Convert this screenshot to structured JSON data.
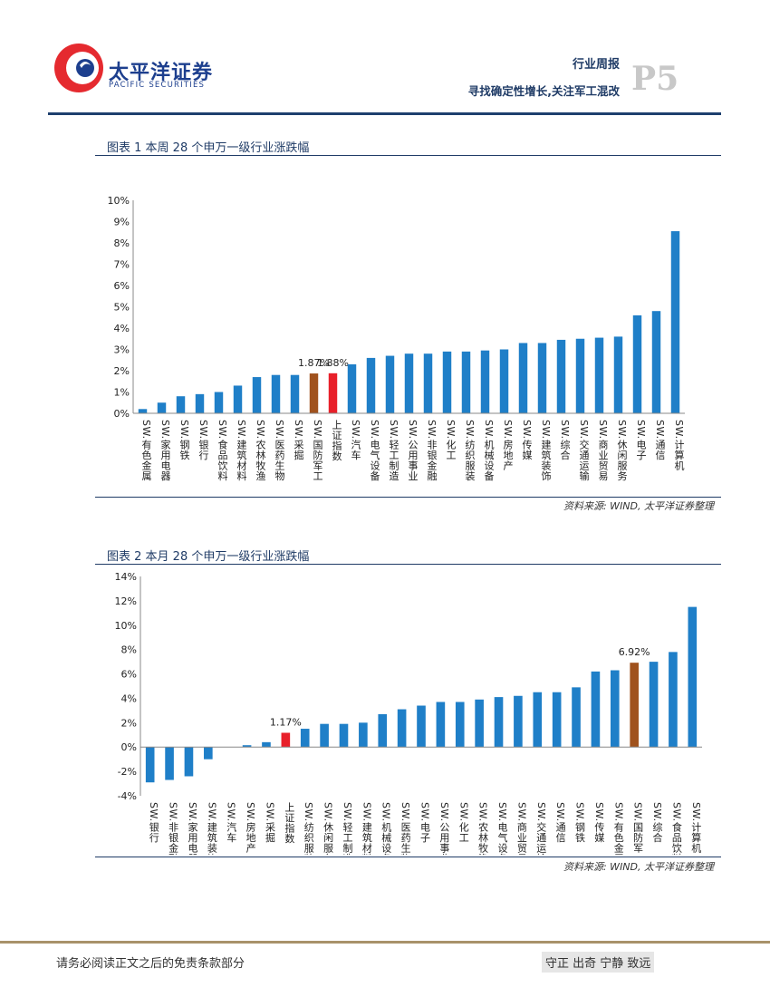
{
  "header": {
    "company_cn": "太平洋证券",
    "company_en": "PACIFIC SECURITIES",
    "report_type": "行业周报",
    "subtitle": "寻找确定性增长,关注军工混改",
    "page": "P5"
  },
  "figure1": {
    "title": "图表 1 本周 28 个申万一级行业涨跌幅",
    "source": "资料来源: WIND, 太平洋证券整理",
    "chart_data": {
      "type": "bar",
      "categories": [
        "SW.有色金属",
        "SW.家用电器",
        "SW.钢铁",
        "SW.银行",
        "SW.食品饮料",
        "SW.建筑材料",
        "SW.农林牧渔",
        "SW.医药生物",
        "SW.采掘",
        "SW.国防军工",
        "上证指数",
        "SW.汽车",
        "SW.电气设备",
        "SW.轻工制造",
        "SW.公用事业",
        "SW.非银金融",
        "SW.化工",
        "SW.纺织服装",
        "SW.机械设备",
        "SW.房地产",
        "SW.传媒",
        "SW.建筑装饰",
        "SW.综合",
        "SW.交通运输",
        "SW.商业贸易",
        "SW.休闲服务",
        "SW.电子",
        "SW.通信",
        "SW.计算机"
      ],
      "values": [
        0.2,
        0.5,
        0.8,
        0.9,
        1.0,
        1.3,
        1.7,
        1.8,
        1.8,
        1.87,
        1.88,
        2.3,
        2.6,
        2.7,
        2.8,
        2.8,
        2.9,
        2.9,
        2.95,
        3.0,
        3.3,
        3.3,
        3.45,
        3.5,
        3.55,
        3.6,
        4.6,
        4.8,
        8.55
      ],
      "highlight_labels": {
        "9": "1.87%",
        "10": "1.88%"
      },
      "bar_colors": {
        "default": "#1f7fc8",
        "9": "#a0521d",
        "10": "#e8202a"
      },
      "yticks": [
        "0%",
        "1%",
        "2%",
        "3%",
        "4%",
        "5%",
        "6%",
        "7%",
        "8%",
        "9%",
        "10%"
      ],
      "ylim": [
        0,
        10
      ]
    }
  },
  "figure2": {
    "title": "图表 2 本月 28 个申万一级行业涨跌幅",
    "source": "资料来源: WIND, 太平洋证券整理",
    "chart_data": {
      "type": "bar",
      "categories": [
        "SW.银行",
        "SW.非银金融",
        "SW.家用电器",
        "SW.建筑装饰",
        "SW.汽车",
        "SW.房地产",
        "SW.采掘",
        "上证指数",
        "SW.纺织服装",
        "SW.休闲服务",
        "SW.轻工制造",
        "SW.建筑材料",
        "SW.机械设备",
        "SW.医药生物",
        "SW.电子",
        "SW.公用事业",
        "SW.化工",
        "SW.农林牧渔",
        "SW.电气设备",
        "SW.商业贸易",
        "SW.交通运输",
        "SW.通信",
        "SW.钢铁",
        "SW.传媒",
        "SW.有色金属",
        "SW.国防军工",
        "SW.综合",
        "SW.食品饮料",
        "SW.计算机"
      ],
      "values": [
        -2.9,
        -2.7,
        -2.4,
        -1.0,
        0.0,
        0.15,
        0.4,
        1.17,
        1.5,
        1.9,
        1.9,
        2.0,
        2.7,
        3.1,
        3.4,
        3.7,
        3.7,
        3.9,
        4.1,
        4.2,
        4.5,
        4.5,
        4.9,
        6.2,
        6.3,
        6.92,
        7.0,
        7.8,
        11.5
      ],
      "highlight_labels": {
        "7": "1.17%",
        "25": "6.92%"
      },
      "bar_colors": {
        "default": "#1f7fc8",
        "25": "#a0521d",
        "7": "#e8202a"
      },
      "yticks": [
        "-4%",
        "-2%",
        "0%",
        "2%",
        "4%",
        "6%",
        "8%",
        "10%",
        "12%",
        "14%"
      ],
      "ylim": [
        -4,
        14
      ]
    }
  },
  "footer": {
    "disclaimer": "请务必阅读正文之后的免责条款部分",
    "motto": "守正 出奇 宁静 致远"
  }
}
